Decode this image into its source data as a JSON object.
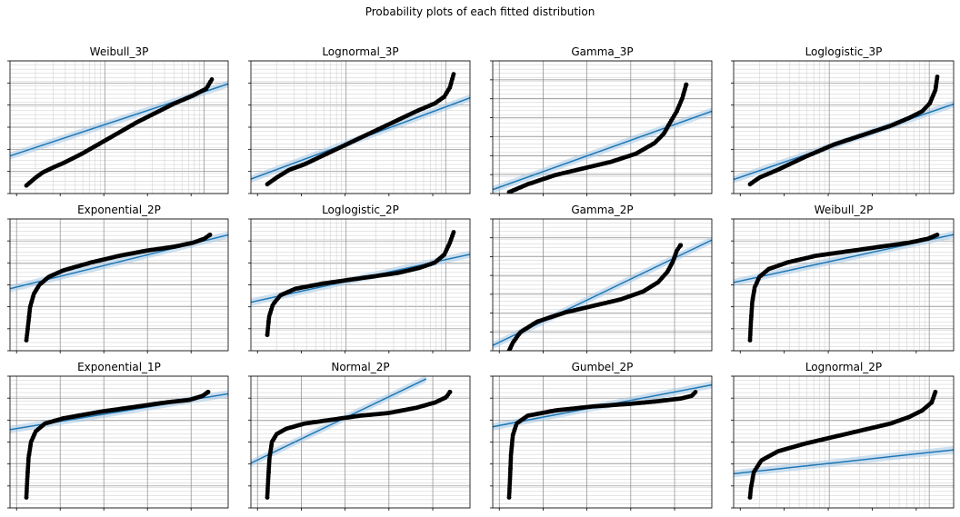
{
  "figure": {
    "title": "Probability plots of each fitted distribution"
  },
  "colors": {
    "fit_line": "#1f77b4",
    "ci_band": "#a6c8e6",
    "points": "#000000",
    "grid_major": "#888888",
    "grid_minor": "#cccccc"
  },
  "chart_data": [
    {
      "type": "scatter",
      "title": "Weibull_3P",
      "xscale": "log",
      "yscale": "weibull",
      "grid": true,
      "legend": "none",
      "series": [
        {
          "points_curve": [
            [
              0,
              0.06
            ],
            [
              0.05,
              0.12
            ],
            [
              0.09,
              0.16
            ],
            [
              0.12,
              0.18
            ],
            [
              0.15,
              0.2
            ],
            [
              0.2,
              0.23
            ],
            [
              0.3,
              0.3
            ],
            [
              0.4,
              0.38
            ],
            [
              0.5,
              0.46
            ],
            [
              0.6,
              0.54
            ],
            [
              0.7,
              0.61
            ],
            [
              0.8,
              0.68
            ],
            [
              0.9,
              0.74
            ],
            [
              0.97,
              0.79
            ],
            [
              1,
              0.86
            ]
          ],
          "fit_line": [
            [
              -0.08,
              0.24
            ],
            [
              1.08,
              0.87
            ]
          ]
        }
      ]
    },
    {
      "type": "scatter",
      "title": "Lognormal_3P",
      "xscale": "log",
      "yscale": "normal",
      "grid": true,
      "legend": "none",
      "series": [
        {
          "points_curve": [
            [
              0,
              0.07
            ],
            [
              0.05,
              0.12
            ],
            [
              0.12,
              0.18
            ],
            [
              0.2,
              0.22
            ],
            [
              0.35,
              0.32
            ],
            [
              0.5,
              0.42
            ],
            [
              0.65,
              0.52
            ],
            [
              0.8,
              0.62
            ],
            [
              0.9,
              0.68
            ],
            [
              0.95,
              0.73
            ],
            [
              0.98,
              0.8
            ],
            [
              1,
              0.9
            ]
          ],
          "fit_line": [
            [
              -0.08,
              0.06
            ],
            [
              1.08,
              0.77
            ]
          ]
        }
      ]
    },
    {
      "type": "scatter",
      "title": "Gamma_3P",
      "xscale": "linear",
      "yscale": "gamma",
      "grid": true,
      "legend": "none",
      "series": [
        {
          "points_curve": [
            [
              0,
              0.01
            ],
            [
              0.1,
              0.07
            ],
            [
              0.25,
              0.14
            ],
            [
              0.4,
              0.19
            ],
            [
              0.55,
              0.24
            ],
            [
              0.68,
              0.3
            ],
            [
              0.78,
              0.38
            ],
            [
              0.83,
              0.45
            ],
            [
              0.87,
              0.55
            ],
            [
              0.9,
              0.62
            ],
            [
              0.93,
              0.72
            ],
            [
              0.95,
              0.82
            ]
          ],
          "fit_line": [
            [
              -0.05,
              0.0
            ],
            [
              1.05,
              0.65
            ]
          ]
        }
      ]
    },
    {
      "type": "scatter",
      "title": "Loglogistic_3P",
      "xscale": "log",
      "yscale": "loglogistic",
      "grid": true,
      "legend": "none",
      "series": [
        {
          "points_curve": [
            [
              0,
              0.07
            ],
            [
              0.05,
              0.12
            ],
            [
              0.15,
              0.18
            ],
            [
              0.3,
              0.28
            ],
            [
              0.45,
              0.37
            ],
            [
              0.6,
              0.44
            ],
            [
              0.75,
              0.51
            ],
            [
              0.85,
              0.57
            ],
            [
              0.92,
              0.62
            ],
            [
              0.96,
              0.68
            ],
            [
              0.99,
              0.78
            ],
            [
              1,
              0.88
            ]
          ],
          "fit_line": [
            [
              -0.08,
              0.06
            ],
            [
              1.08,
              0.72
            ]
          ]
        }
      ]
    },
    {
      "type": "scatter",
      "title": "Exponential_2P",
      "xscale": "linear",
      "yscale": "exponential",
      "grid": true,
      "legend": "none",
      "series": [
        {
          "points_curve": [
            [
              0,
              0.08
            ],
            [
              0.01,
              0.2
            ],
            [
              0.02,
              0.33
            ],
            [
              0.04,
              0.43
            ],
            [
              0.07,
              0.5
            ],
            [
              0.12,
              0.56
            ],
            [
              0.2,
              0.61
            ],
            [
              0.35,
              0.67
            ],
            [
              0.5,
              0.72
            ],
            [
              0.65,
              0.76
            ],
            [
              0.8,
              0.79
            ],
            [
              0.9,
              0.82
            ],
            [
              0.96,
              0.85
            ],
            [
              0.99,
              0.88
            ]
          ],
          "fit_line": [
            [
              -0.05,
              0.45
            ],
            [
              1.05,
              0.9
            ]
          ]
        }
      ]
    },
    {
      "type": "scatter",
      "title": "Loglogistic_2P",
      "xscale": "log",
      "yscale": "loglogistic",
      "grid": true,
      "legend": "none",
      "series": [
        {
          "points_curve": [
            [
              0,
              0.12
            ],
            [
              0.01,
              0.26
            ],
            [
              0.03,
              0.35
            ],
            [
              0.07,
              0.42
            ],
            [
              0.15,
              0.47
            ],
            [
              0.3,
              0.51
            ],
            [
              0.5,
              0.55
            ],
            [
              0.7,
              0.59
            ],
            [
              0.82,
              0.63
            ],
            [
              0.9,
              0.67
            ],
            [
              0.95,
              0.73
            ],
            [
              0.98,
              0.82
            ],
            [
              1,
              0.9
            ]
          ],
          "fit_line": [
            [
              -0.05,
              0.35
            ],
            [
              1.05,
              0.75
            ]
          ]
        }
      ]
    },
    {
      "type": "scatter",
      "title": "Gamma_2P",
      "xscale": "linear",
      "yscale": "gamma",
      "grid": true,
      "legend": "none",
      "series": [
        {
          "points_curve": [
            [
              0,
              0.0
            ],
            [
              0.02,
              0.06
            ],
            [
              0.06,
              0.14
            ],
            [
              0.15,
              0.22
            ],
            [
              0.3,
              0.29
            ],
            [
              0.45,
              0.34
            ],
            [
              0.6,
              0.39
            ],
            [
              0.72,
              0.45
            ],
            [
              0.8,
              0.52
            ],
            [
              0.85,
              0.6
            ],
            [
              0.88,
              0.68
            ],
            [
              0.9,
              0.76
            ],
            [
              0.92,
              0.8
            ]
          ],
          "fit_line": [
            [
              -0.05,
              0.0
            ],
            [
              1.05,
              0.88
            ]
          ]
        }
      ]
    },
    {
      "type": "scatter",
      "title": "Weibull_2P",
      "xscale": "log",
      "yscale": "weibull",
      "grid": true,
      "legend": "none",
      "series": [
        {
          "points_curve": [
            [
              0,
              0.08
            ],
            [
              0.005,
              0.22
            ],
            [
              0.012,
              0.37
            ],
            [
              0.025,
              0.48
            ],
            [
              0.05,
              0.56
            ],
            [
              0.1,
              0.62
            ],
            [
              0.2,
              0.67
            ],
            [
              0.35,
              0.72
            ],
            [
              0.55,
              0.76
            ],
            [
              0.7,
              0.79
            ],
            [
              0.85,
              0.82
            ],
            [
              0.95,
              0.85
            ],
            [
              1,
              0.88
            ]
          ],
          "fit_line": [
            [
              -0.05,
              0.5
            ],
            [
              1.05,
              0.9
            ]
          ]
        }
      ]
    },
    {
      "type": "scatter",
      "title": "Exponential_1P",
      "xscale": "linear",
      "yscale": "exponential",
      "grid": true,
      "legend": "none",
      "series": [
        {
          "points_curve": [
            [
              0,
              0.08
            ],
            [
              0.005,
              0.22
            ],
            [
              0.012,
              0.38
            ],
            [
              0.025,
              0.5
            ],
            [
              0.05,
              0.58
            ],
            [
              0.1,
              0.64
            ],
            [
              0.2,
              0.68
            ],
            [
              0.4,
              0.73
            ],
            [
              0.6,
              0.77
            ],
            [
              0.75,
              0.8
            ],
            [
              0.88,
              0.82
            ],
            [
              0.95,
              0.85
            ],
            [
              0.98,
              0.88
            ]
          ],
          "fit_line": [
            [
              -0.05,
              0.58
            ],
            [
              1.05,
              0.88
            ]
          ]
        }
      ]
    },
    {
      "type": "scatter",
      "title": "Normal_2P",
      "xscale": "linear",
      "yscale": "normal",
      "grid": true,
      "legend": "none",
      "series": [
        {
          "points_curve": [
            [
              0,
              0.08
            ],
            [
              0.005,
              0.22
            ],
            [
              0.012,
              0.38
            ],
            [
              0.025,
              0.5
            ],
            [
              0.05,
              0.56
            ],
            [
              0.1,
              0.6
            ],
            [
              0.2,
              0.64
            ],
            [
              0.35,
              0.67
            ],
            [
              0.5,
              0.7
            ],
            [
              0.65,
              0.72
            ],
            [
              0.8,
              0.76
            ],
            [
              0.9,
              0.8
            ],
            [
              0.96,
              0.84
            ],
            [
              0.98,
              0.88
            ]
          ],
          "fit_line": [
            [
              -0.05,
              0.3
            ],
            [
              0.8,
              0.98
            ]
          ]
        }
      ]
    },
    {
      "type": "scatter",
      "title": "Gumbel_2P",
      "xscale": "linear",
      "yscale": "gumbel",
      "grid": true,
      "legend": "none",
      "series": [
        {
          "points_curve": [
            [
              0,
              0.08
            ],
            [
              0.005,
              0.22
            ],
            [
              0.01,
              0.4
            ],
            [
              0.02,
              0.55
            ],
            [
              0.04,
              0.64
            ],
            [
              0.1,
              0.7
            ],
            [
              0.25,
              0.74
            ],
            [
              0.45,
              0.77
            ],
            [
              0.65,
              0.79
            ],
            [
              0.8,
              0.81
            ],
            [
              0.92,
              0.83
            ],
            [
              0.98,
              0.85
            ],
            [
              1,
              0.88
            ]
          ],
          "fit_line": [
            [
              -0.05,
              0.6
            ],
            [
              1.05,
              0.95
            ]
          ]
        }
      ]
    },
    {
      "type": "scatter",
      "title": "Lognormal_2P",
      "xscale": "log",
      "yscale": "normal",
      "grid": true,
      "legend": "none",
      "series": [
        {
          "points_curve": [
            [
              0,
              0.08
            ],
            [
              0.005,
              0.15
            ],
            [
              0.02,
              0.27
            ],
            [
              0.06,
              0.36
            ],
            [
              0.15,
              0.43
            ],
            [
              0.3,
              0.49
            ],
            [
              0.45,
              0.54
            ],
            [
              0.6,
              0.59
            ],
            [
              0.75,
              0.64
            ],
            [
              0.85,
              0.69
            ],
            [
              0.92,
              0.74
            ],
            [
              0.97,
              0.8
            ],
            [
              0.99,
              0.88
            ]
          ],
          "fit_line": [
            [
              -0.05,
              0.25
            ],
            [
              1.05,
              0.45
            ]
          ]
        }
      ]
    }
  ]
}
